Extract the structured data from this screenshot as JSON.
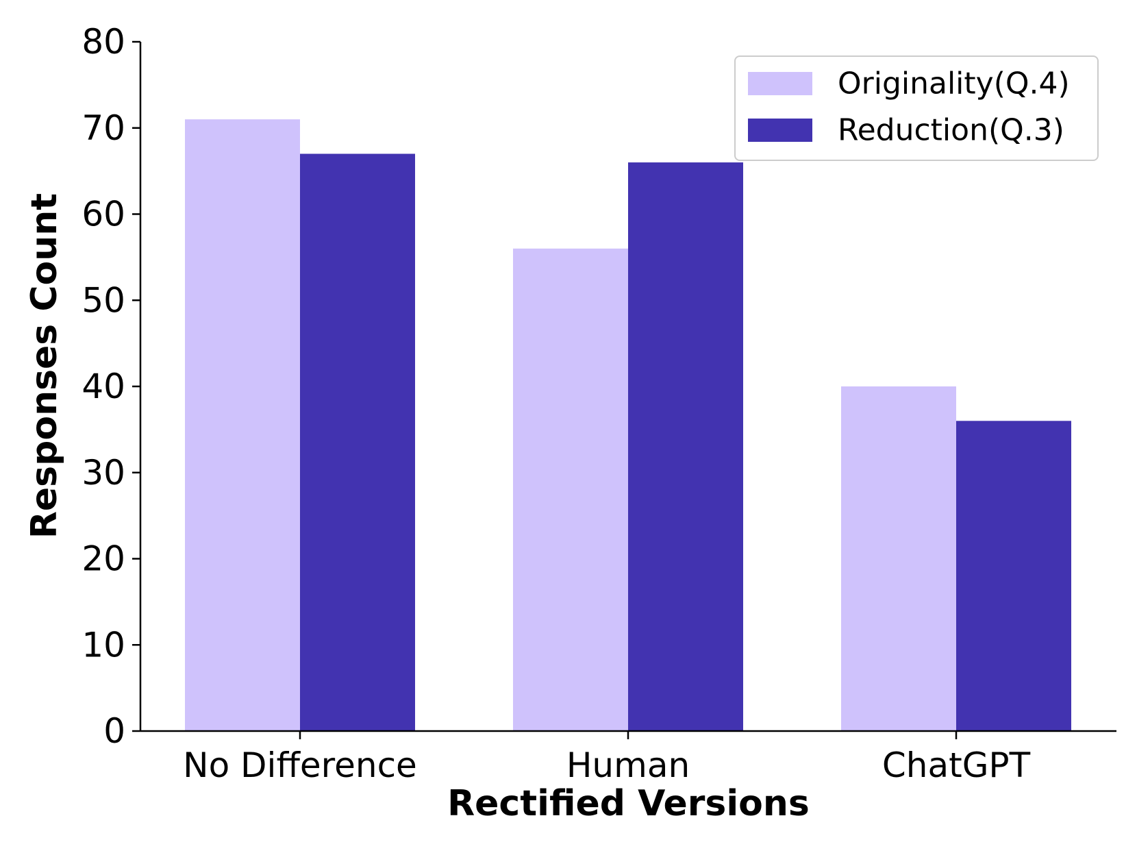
{
  "chart_data": {
    "type": "bar",
    "title": "",
    "xlabel": "Rectified Versions",
    "ylabel": "Responses Count",
    "categories": [
      "No Difference",
      "Human",
      "ChatGPT"
    ],
    "series": [
      {
        "name": "Originality(Q.4)",
        "values": [
          71,
          56,
          40
        ],
        "color": "#cfc2fc"
      },
      {
        "name": "Reduction(Q.3)",
        "values": [
          67,
          66,
          36
        ],
        "color": "#4233b0"
      }
    ],
    "ylim": [
      0,
      80
    ],
    "yticks": [
      0,
      10,
      20,
      30,
      40,
      50,
      60,
      70,
      80
    ],
    "grid": false,
    "legend_position": "top-right"
  }
}
